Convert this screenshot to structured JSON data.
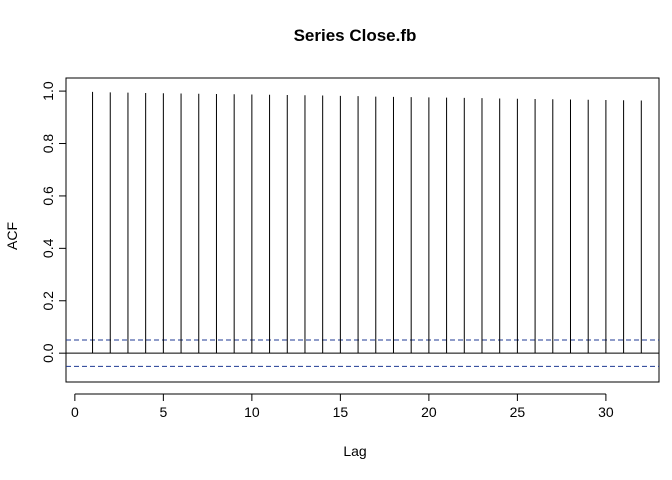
{
  "chart_data": {
    "type": "bar",
    "title": "Series  Close.fb",
    "xlabel": "Lag",
    "ylabel": "ACF",
    "xlim": [
      -0.5,
      33.0
    ],
    "ylim": [
      -0.11,
      1.05
    ],
    "x_ticks": [
      0,
      5,
      10,
      15,
      20,
      25,
      30
    ],
    "y_ticks": [
      0.0,
      0.2,
      0.4,
      0.6,
      0.8,
      1.0
    ],
    "y_tick_labels": [
      "0.0",
      "0.2",
      "0.4",
      "0.6",
      "0.8",
      "1.0"
    ],
    "zero_line": 0,
    "confidence_bound": 0.0505,
    "grid": false,
    "line_color": "#000000",
    "ci_color": "#1f3a93",
    "x": [
      1,
      2,
      3,
      4,
      5,
      6,
      7,
      8,
      9,
      10,
      11,
      12,
      13,
      14,
      15,
      16,
      17,
      18,
      19,
      20,
      21,
      22,
      23,
      24,
      25,
      26,
      27,
      28,
      29,
      30,
      31,
      32
    ],
    "values": [
      0.997,
      0.995,
      0.994,
      0.993,
      0.992,
      0.991,
      0.99,
      0.989,
      0.988,
      0.987,
      0.986,
      0.985,
      0.984,
      0.983,
      0.982,
      0.981,
      0.979,
      0.978,
      0.977,
      0.976,
      0.975,
      0.974,
      0.973,
      0.972,
      0.971,
      0.97,
      0.969,
      0.968,
      0.967,
      0.966,
      0.965,
      0.964
    ]
  }
}
